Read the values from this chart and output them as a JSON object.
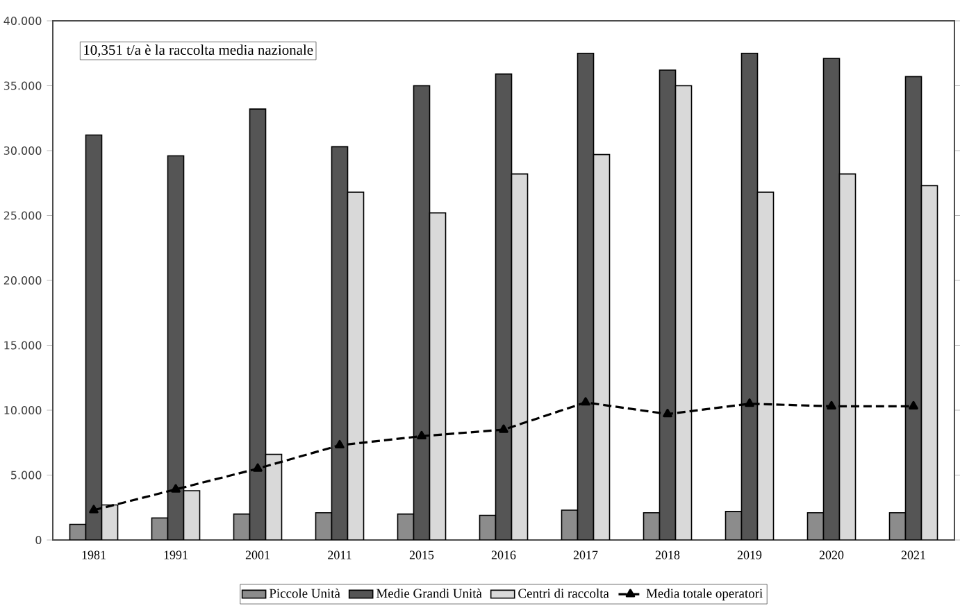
{
  "chart_data": {
    "type": "bar",
    "categories": [
      "1981",
      "1991",
      "2001",
      "2011",
      "2015",
      "2016",
      "2017",
      "2018",
      "2019",
      "2020",
      "2021"
    ],
    "series": [
      {
        "name": "Piccole Unità",
        "color": "#8c8c8c",
        "values": [
          1200,
          1700,
          2000,
          2100,
          2000,
          1900,
          2300,
          2100,
          2200,
          2100,
          2100
        ]
      },
      {
        "name": "Medie Grandi Unità",
        "color": "#555555",
        "values": [
          31200,
          29600,
          33200,
          30300,
          35000,
          35900,
          37500,
          36200,
          37500,
          37100,
          35700
        ]
      },
      {
        "name": "Centri di raccolta",
        "color": "#d9d9d9",
        "values": [
          2700,
          3800,
          6600,
          26800,
          25200,
          28200,
          29700,
          35000,
          26800,
          28200,
          27300
        ]
      },
      {
        "name": "Media totale operatori",
        "type": "line",
        "color": "#000000",
        "marker": "triangle",
        "line_style": "dashed",
        "values": [
          2300,
          3900,
          5500,
          7300,
          8000,
          8500,
          10600,
          9700,
          10500,
          10300,
          10300
        ]
      }
    ],
    "ylim": [
      0,
      40000
    ],
    "yticks": [
      {
        "value": 0,
        "label": "0"
      },
      {
        "value": 5000,
        "label": "5.000"
      },
      {
        "value": 10000,
        "label": "10.000"
      },
      {
        "value": 15000,
        "label": "15.000"
      },
      {
        "value": 20000,
        "label": "20.000"
      },
      {
        "value": 25000,
        "label": "25.000"
      },
      {
        "value": 30000,
        "label": "30.000"
      },
      {
        "value": 35000,
        "label": "35.000"
      },
      {
        "value": 40000,
        "label": "40.000"
      }
    ],
    "annotations": [
      "10,351 t/a è la raccolta media nazionale"
    ],
    "legend": "bottom",
    "grid": false
  }
}
